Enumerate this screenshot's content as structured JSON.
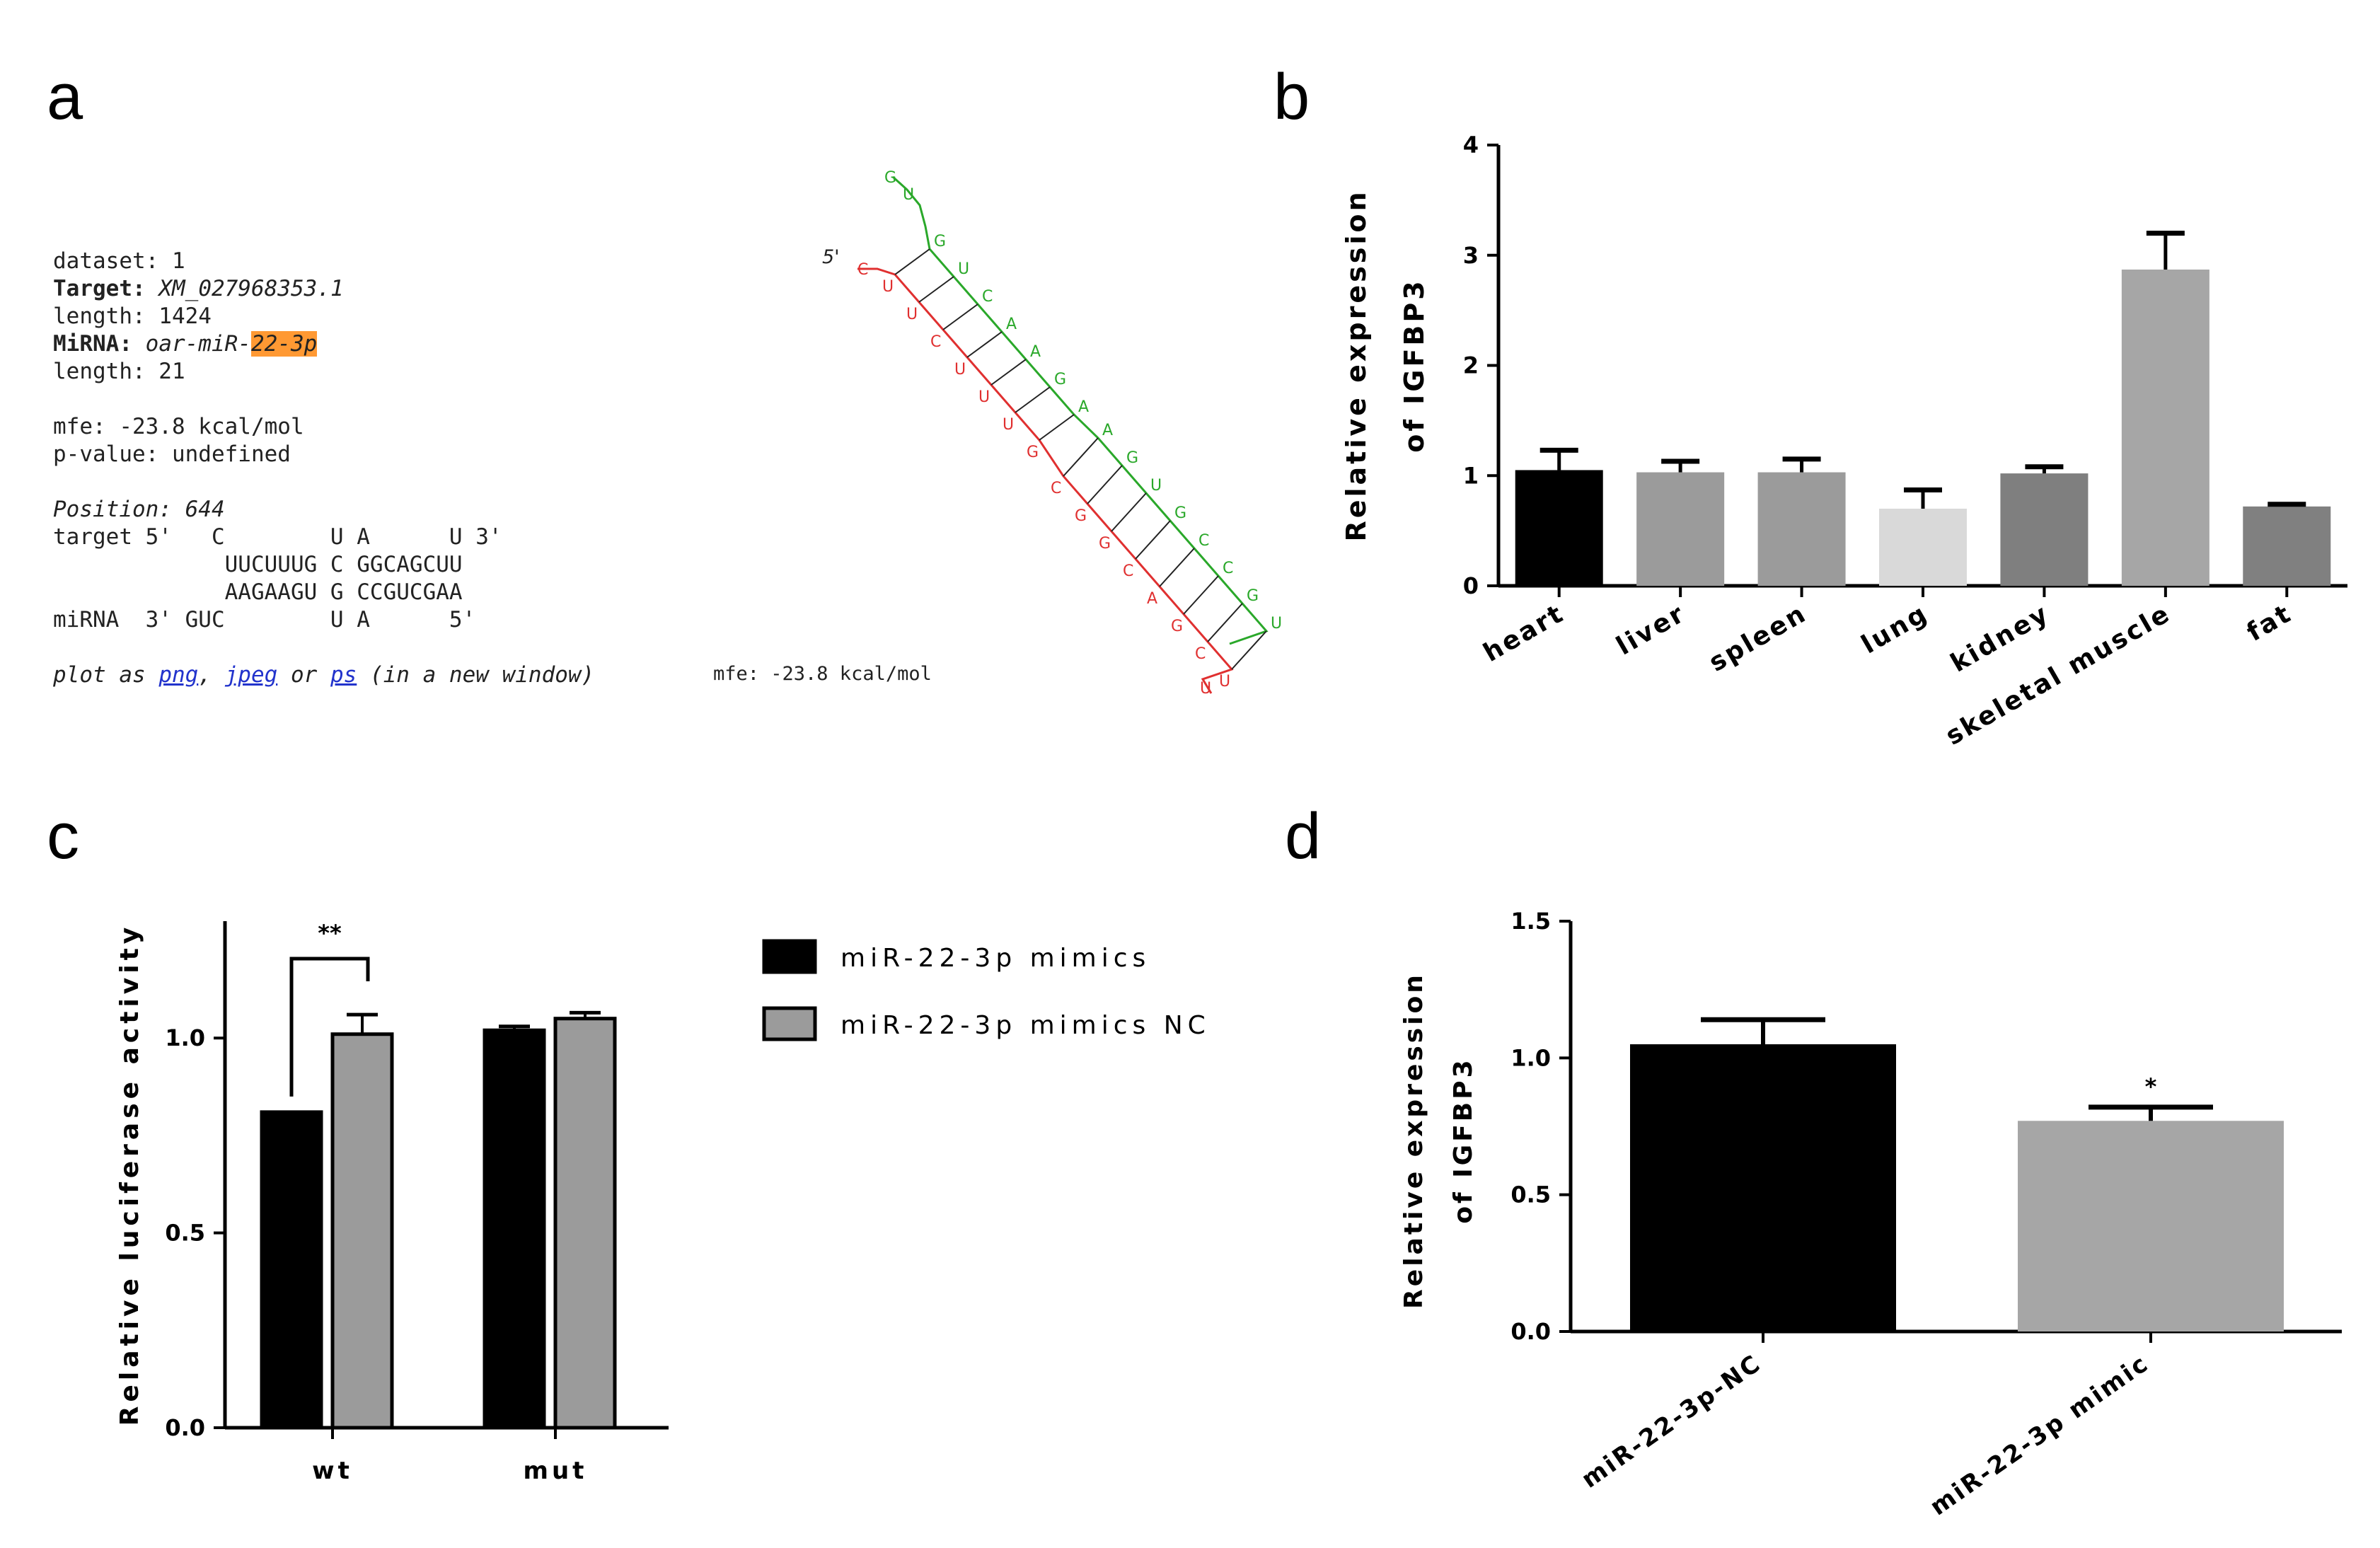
{
  "panels": {
    "a": "a",
    "b": "b",
    "c": "c",
    "d": "d"
  },
  "rnahybrid": {
    "dataset": "dataset: 1",
    "target_label": "Target:",
    "target_value": "XM_027968353.1",
    "length1": "length: 1424",
    "mirna_label": "MiRNA:",
    "mirna_prefix": "oar-miR-",
    "mirna_highlight": "22-3p",
    "length2": "length: 21",
    "mfe": "mfe: -23.8 kcal/mol",
    "pvalue": "p-value: undefined",
    "position": "Position: 644",
    "line_target": "target 5'   C        U A      U 3'",
    "line_top": "             UUCUUUG C GGCAGCUU",
    "line_bottom": "             AAGAAGU G CCGUCGAA",
    "line_mirna": "miRNA  3' GUC        U A      5'",
    "plot_prefix": "plot as ",
    "link_png": "png",
    "sep1": ", ",
    "link_jpeg": "jpeg",
    "sep2": " or ",
    "link_ps": "ps",
    "plot_suffix": " (in a new window)",
    "structure_mfe": "mfe: -23.8 kcal/mol",
    "five_prime": "5'"
  },
  "colors": {
    "target_strand": "#e03030",
    "mirna_strand": "#2aa82a",
    "highlight": "#ff9933",
    "link": "#2233cc"
  },
  "chart_data": [
    {
      "id": "b",
      "type": "bar",
      "ylabel_line1": "Relative expression",
      "ylabel_line2": "of IGFBP3",
      "ylim": [
        0,
        4
      ],
      "yticks": [
        "0",
        "1",
        "2",
        "3",
        "4"
      ],
      "categories": [
        "heart",
        "liver",
        "spleen",
        "lung",
        "kidney",
        "skeletal muscle",
        "fat"
      ],
      "values": [
        1.05,
        1.03,
        1.03,
        0.7,
        1.02,
        2.87,
        0.72
      ],
      "errors": [
        0.18,
        0.1,
        0.12,
        0.17,
        0.06,
        0.33,
        0.02
      ],
      "bar_colors": [
        "#000000",
        "#9b9b9b",
        "#9b9b9b",
        "#d9d9d9",
        "#7f7f7f",
        "#a6a6a6",
        "#808080"
      ]
    },
    {
      "id": "c",
      "type": "bar",
      "ylabel": "Relative luciferase activity",
      "ylim": [
        0,
        1.3
      ],
      "yticks": [
        "0.0",
        "0.5",
        "1.0"
      ],
      "categories": [
        "wt",
        "mut"
      ],
      "series": [
        {
          "name": "miR-22-3p mimics",
          "values": [
            0.81,
            1.02
          ],
          "errors": [
            0,
            0.01
          ],
          "color": "#000000"
        },
        {
          "name": "miR-22-3p mimics NC",
          "values": [
            1.01,
            1.05
          ],
          "errors": [
            0.05,
            0.015
          ],
          "color": "#9b9b9b"
        }
      ],
      "annotation": "**"
    },
    {
      "id": "d",
      "type": "bar",
      "ylabel_line1": "Relative expression",
      "ylabel_line2": "of IGFBP3",
      "ylim": [
        0,
        1.5
      ],
      "yticks": [
        "0.0",
        "0.5",
        "1.0",
        "1.5"
      ],
      "categories": [
        "miR-22-3p-NC",
        "miR-22-3p mimic"
      ],
      "values": [
        1.05,
        0.77
      ],
      "errors": [
        0.09,
        0.05
      ],
      "bar_colors": [
        "#000000",
        "#a6a6a6"
      ],
      "annotation": "*"
    }
  ]
}
